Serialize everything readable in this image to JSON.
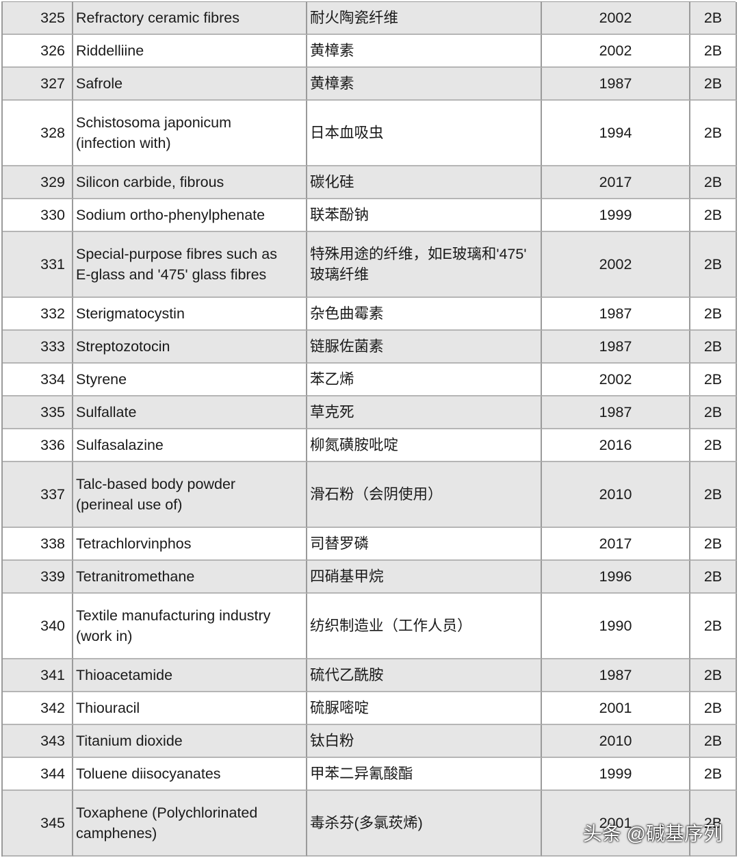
{
  "table": {
    "rows": [
      [
        "325",
        "Refractory ceramic fibres",
        "耐火陶瓷纤维",
        "2002",
        "2B"
      ],
      [
        "326",
        "Riddelliine",
        "黄樟素",
        "2002",
        "2B"
      ],
      [
        "327",
        "Safrole",
        "黄樟素",
        "1987",
        "2B"
      ],
      [
        "328",
        [
          "Schistosoma japonicum",
          "(infection with)"
        ],
        "日本血吸虫",
        "1994",
        "2B"
      ],
      [
        "329",
        "Silicon carbide, fibrous",
        "碳化硅",
        "2017",
        "2B"
      ],
      [
        "330",
        "Sodium ortho-phenylphenate",
        "联苯酚钠",
        "1999",
        "2B"
      ],
      [
        "331",
        [
          "Special-purpose fibres such as",
          "E-glass and '475' glass fibres"
        ],
        [
          "特殊用途的纤维，如E玻璃和'475'",
          "玻璃纤维"
        ],
        "2002",
        "2B"
      ],
      [
        "332",
        "Sterigmatocystin",
        "杂色曲霉素",
        "1987",
        "2B"
      ],
      [
        "333",
        "Streptozotocin",
        "链脲佐菌素",
        "1987",
        "2B"
      ],
      [
        "334",
        "Styrene",
        "苯乙烯",
        "2002",
        "2B"
      ],
      [
        "335",
        "Sulfallate",
        "草克死",
        "1987",
        "2B"
      ],
      [
        "336",
        "Sulfasalazine",
        "柳氮磺胺吡啶",
        "2016",
        "2B"
      ],
      [
        "337",
        [
          "Talc-based body powder",
          "(perineal use of)"
        ],
        "滑石粉（会阴使用）",
        "2010",
        "2B"
      ],
      [
        "338",
        "Tetrachlorvinphos",
        "司替罗磷",
        "2017",
        "2B"
      ],
      [
        "339",
        "Tetranitromethane",
        "四硝基甲烷",
        "1996",
        "2B"
      ],
      [
        "340",
        [
          "Textile manufacturing industry",
          "(work in)"
        ],
        "纺织制造业（工作人员）",
        "1990",
        "2B"
      ],
      [
        "341",
        "Thioacetamide",
        "硫代乙酰胺",
        "1987",
        "2B"
      ],
      [
        "342",
        "Thiouracil",
        "硫脲嘧啶",
        "2001",
        "2B"
      ],
      [
        "343",
        "Titanium dioxide",
        "钛白粉",
        "2010",
        "2B"
      ],
      [
        "344",
        "Toluene diisocyanates",
        "甲苯二异氰酸酯",
        "1999",
        "2B"
      ],
      [
        "345",
        [
          "Toxaphene (Polychlorinated",
          "camphenes)"
        ],
        "毒杀芬(多氯莰烯)",
        "2001",
        "2B"
      ]
    ]
  },
  "watermark": "头条 @碱基序列"
}
